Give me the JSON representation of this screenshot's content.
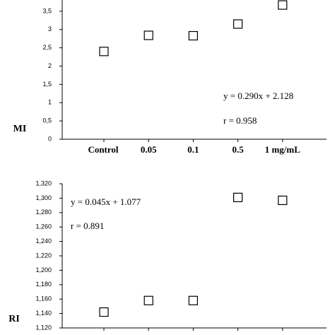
{
  "chart_data": [
    {
      "type": "scatter",
      "ylabel": "MI",
      "categories": [
        "Control",
        "0.05",
        "0.1",
        "0.5",
        "1 mg/mL"
      ],
      "values": [
        2.4,
        2.84,
        2.83,
        3.15,
        3.67
      ],
      "ylim": [
        0,
        4
      ],
      "yticks": [
        0,
        {
          "value": 0.5,
          "label": "0,5"
        },
        1,
        {
          "value": 1.5,
          "label": "1,5"
        },
        2,
        {
          "value": 2.5,
          "label": "2,5"
        },
        3,
        {
          "value": 3.5,
          "label": "3,5"
        }
      ],
      "annotations": [
        "y = 0.290x + 2.128",
        "r = 0.958"
      ],
      "color": "#000000"
    },
    {
      "type": "scatter",
      "ylabel": "RI",
      "categories": [
        null,
        null,
        null,
        null,
        null
      ],
      "values": [
        1.142,
        1.158,
        1.158,
        1.301,
        1.297
      ],
      "ylim": [
        1.12,
        1.32
      ],
      "yticks": [
        {
          "value": 1.12,
          "label": "1,120"
        },
        {
          "value": 1.14,
          "label": "1,140"
        },
        {
          "value": 1.16,
          "label": "1,160"
        },
        {
          "value": 1.18,
          "label": "1,180"
        },
        {
          "value": 1.2,
          "label": "1,200"
        },
        {
          "value": 1.22,
          "label": "1,220"
        },
        {
          "value": 1.24,
          "label": "1,240"
        },
        {
          "value": 1.26,
          "label": "1,260"
        },
        {
          "value": 1.28,
          "label": "1,280"
        },
        {
          "value": 1.3,
          "label": "1,300"
        },
        {
          "value": 1.32,
          "label": "1,320"
        }
      ],
      "annotations": [
        "y = 0.045x + 1.077",
        "r = 0.891"
      ],
      "color": "#000000"
    }
  ]
}
